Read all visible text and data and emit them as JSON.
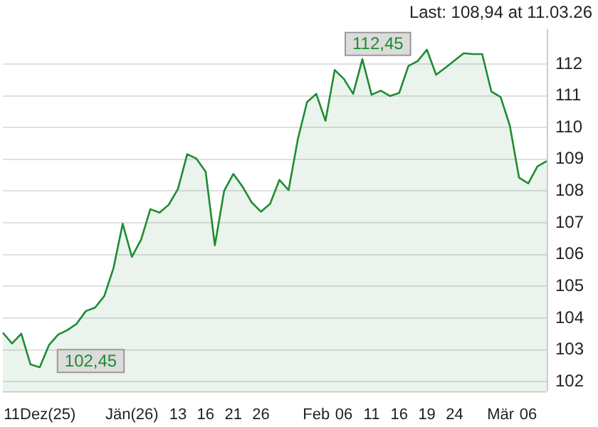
{
  "chart_data": {
    "type": "area",
    "title": "Last: 108,94 at 11.03.26",
    "categories": [
      null,
      null,
      null,
      null,
      "11Dez(25)",
      null,
      null,
      null,
      null,
      null,
      null,
      null,
      null,
      null,
      "Jän(26)",
      null,
      null,
      null,
      null,
      "13",
      null,
      null,
      "16",
      null,
      null,
      "21",
      null,
      null,
      "26",
      null,
      null,
      null,
      null,
      null,
      "Feb",
      null,
      null,
      "06",
      null,
      null,
      "11",
      null,
      null,
      "16",
      null,
      null,
      "19",
      null,
      null,
      "24",
      null,
      null,
      null,
      null,
      "Mär",
      null,
      null,
      "06",
      null,
      null
    ],
    "series": [
      {
        "color": "#1e8c32",
        "values": [
          103.54,
          103.2,
          103.51,
          102.54,
          102.45,
          103.15,
          103.48,
          103.62,
          103.82,
          104.22,
          104.33,
          104.69,
          105.57,
          106.97,
          105.93,
          106.47,
          107.43,
          107.32,
          107.57,
          108.07,
          109.16,
          109.02,
          108.61,
          106.29,
          108.0,
          108.54,
          108.14,
          107.64,
          107.35,
          107.6,
          108.35,
          108.03,
          109.63,
          110.8,
          111.06,
          110.21,
          111.81,
          111.53,
          111.06,
          112.15,
          111.03,
          111.16,
          110.99,
          111.09,
          111.94,
          112.09,
          112.45,
          111.66,
          111.88,
          112.11,
          112.34,
          112.31,
          112.31,
          111.13,
          110.96,
          110.06,
          108.42,
          108.24,
          108.78,
          108.94
        ]
      }
    ],
    "ylim": [
      101.7,
      113.1
    ],
    "yticks": [
      102,
      103,
      104,
      105,
      106,
      107,
      108,
      109,
      110,
      111,
      112
    ],
    "grid": "y",
    "annotations": [
      {
        "text": "112,45",
        "x": "19",
        "y": 112.45
      },
      {
        "text": "102,45",
        "x": "11Dez(25)",
        "y": 102.45
      }
    ]
  }
}
